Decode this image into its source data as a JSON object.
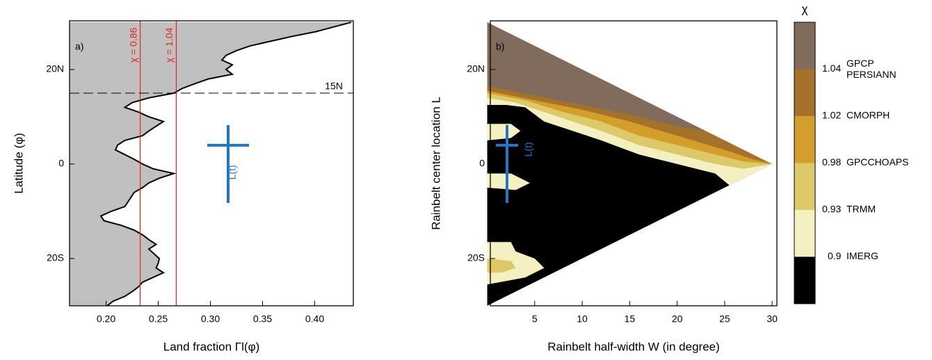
{
  "chart_data": [
    {
      "type": "area_line",
      "panel_label": "a)",
      "xlabel": "Land fraction Γl(φ)",
      "ylabel": "Latitude (φ)",
      "xlim": [
        0.165,
        0.437
      ],
      "xticks": [
        {
          "value": 0.2,
          "label": "0.20"
        },
        {
          "value": 0.25,
          "label": "0.25"
        },
        {
          "value": 0.3,
          "label": "0.30"
        },
        {
          "value": 0.35,
          "label": "0.35"
        },
        {
          "value": 0.4,
          "label": "0.40"
        }
      ],
      "ylim": [
        -30,
        30.3
      ],
      "yticks": [
        {
          "value": -20,
          "label": "20S"
        },
        0,
        {
          "value": 20,
          "label": "20N"
        }
      ],
      "latitudes": [
        30,
        29,
        28,
        27,
        26,
        25,
        24,
        23,
        22,
        21,
        20,
        19,
        18,
        17,
        16,
        15,
        14,
        13,
        12,
        11,
        10,
        9,
        8,
        7,
        6,
        5,
        4,
        3,
        2,
        1,
        0,
        -1,
        -2,
        -3,
        -4,
        -5,
        -6,
        -7,
        -8,
        -9,
        -10,
        -11,
        -12,
        -13,
        -14,
        -15,
        -16,
        -17,
        -18,
        -19,
        -20,
        -21,
        -22,
        -23,
        -24,
        -25,
        -26,
        -27,
        -28,
        -29,
        -30
      ],
      "values": [
        0.435,
        0.418,
        0.401,
        0.378,
        0.358,
        0.338,
        0.325,
        0.315,
        0.311,
        0.321,
        0.315,
        0.321,
        0.298,
        0.285,
        0.273,
        0.265,
        0.241,
        0.225,
        0.218,
        0.231,
        0.241,
        0.255,
        0.248,
        0.241,
        0.235,
        0.218,
        0.211,
        0.209,
        0.218,
        0.227,
        0.235,
        0.245,
        0.265,
        0.251,
        0.241,
        0.235,
        0.227,
        0.224,
        0.221,
        0.218,
        0.205,
        0.195,
        0.198,
        0.215,
        0.227,
        0.235,
        0.241,
        0.248,
        0.241,
        0.246,
        0.251,
        0.25,
        0.248,
        0.255,
        0.245,
        0.235,
        0.231,
        0.225,
        0.218,
        0.207,
        0.201
      ],
      "fill_color": "#c0c0c0",
      "vlines": [
        {
          "x": 0.2327,
          "label": "χ = 0.86",
          "color": "#e8201c"
        },
        {
          "x": 0.2673,
          "label": "χ = 1.04",
          "color": "#e8201c"
        }
      ],
      "hline": {
        "y": 15,
        "label": "15N"
      },
      "annotation": "L(t)"
    },
    {
      "type": "contour",
      "panel_label": "b)",
      "xlabel": "Rainbelt half-width W (in degree)",
      "ylabel": "Rainbelt center location L",
      "xlim": [
        0.33,
        30.5
      ],
      "xticks": [
        5,
        10,
        15,
        20,
        25,
        30
      ],
      "ylim": [
        -30,
        30.3
      ],
      "yticks": [
        {
          "value": -20,
          "label": "20S"
        },
        0,
        {
          "value": 20,
          "label": "20N"
        }
      ],
      "annotation": "L(t)",
      "colorbar_title": "χ",
      "levels": [
        0.9,
        0.93,
        0.98,
        1.02,
        1.04
      ],
      "colors": [
        "#000000",
        "#f5f0c2",
        "#ddc86a",
        "#d39f2a",
        "#a6722a",
        "#806b5c"
      ],
      "products": [
        "IMERG",
        "TRMM",
        "GPCCHOAPS",
        "CMORPH",
        [
          "GPCP",
          "PERSIANN"
        ]
      ],
      "domain": [
        [
          0,
          30
        ],
        [
          30,
          0
        ],
        [
          0,
          -30
        ]
      ],
      "regions": [
        {
          "level": 0.9,
          "points": [
            [
              0,
              30
            ],
            [
              30,
              0
            ],
            [
              25.5,
              -4.5
            ],
            [
              24,
              -2
            ],
            [
              20,
              0
            ],
            [
              16,
              2
            ],
            [
              12,
              5
            ],
            [
              9,
              7
            ],
            [
              6,
              9
            ],
            [
              4,
              12
            ],
            [
              2,
              12.5
            ],
            [
              0,
              12.5
            ]
          ]
        },
        {
          "level": 0.9,
          "points": [
            [
              0,
              8.5
            ],
            [
              2.5,
              8.5
            ],
            [
              3.5,
              7
            ],
            [
              2.5,
              5.5
            ],
            [
              0,
              5
            ]
          ]
        },
        {
          "level": 0.9,
          "points": [
            [
              0,
              -2
            ],
            [
              2.5,
              -2
            ],
            [
              4.5,
              -4
            ],
            [
              3,
              -5.5
            ],
            [
              0,
              -5
            ]
          ]
        },
        {
          "level": 0.9,
          "points": [
            [
              0,
              -16.5
            ],
            [
              2.5,
              -16.5
            ],
            [
              3,
              -18.5
            ],
            [
              5,
              -20
            ],
            [
              6,
              -22
            ],
            [
              4,
              -24
            ],
            [
              0,
              -25.5
            ]
          ]
        },
        {
          "level": 0.93,
          "points": [
            [
              0,
              30
            ],
            [
              30,
              0
            ],
            [
              27,
              -1
            ],
            [
              24,
              0
            ],
            [
              20,
              2
            ],
            [
              16,
              4
            ],
            [
              12,
              7
            ],
            [
              9,
              9
            ],
            [
              6,
              11
            ],
            [
              3,
              13
            ],
            [
              0,
              14
            ]
          ]
        },
        {
          "level": 0.93,
          "points": [
            [
              0,
              -20
            ],
            [
              2.5,
              -20.5
            ],
            [
              3,
              -22
            ],
            [
              1.5,
              -23
            ],
            [
              0,
              -23
            ]
          ]
        },
        {
          "level": 0.98,
          "points": [
            [
              0,
              30
            ],
            [
              30,
              0
            ],
            [
              27,
              0.5
            ],
            [
              24,
              2
            ],
            [
              20,
              4
            ],
            [
              16,
              6
            ],
            [
              12,
              9
            ],
            [
              8,
              11
            ],
            [
              4,
              13.5
            ],
            [
              0,
              15
            ]
          ]
        },
        {
          "level": 1.02,
          "points": [
            [
              0,
              30
            ],
            [
              30,
              0
            ],
            [
              28,
              1
            ],
            [
              25,
              3
            ],
            [
              20,
              6
            ],
            [
              15,
              9
            ],
            [
              10,
              11.5
            ],
            [
              5,
              13.5
            ],
            [
              0,
              15.5
            ]
          ]
        },
        {
          "level": 1.04,
          "points": [
            [
              0,
              30
            ],
            [
              23,
              7
            ],
            [
              20,
              8
            ],
            [
              15,
              10.5
            ],
            [
              10,
              12.5
            ],
            [
              5,
              14.5
            ],
            [
              0,
              16.5
            ]
          ]
        }
      ]
    }
  ]
}
